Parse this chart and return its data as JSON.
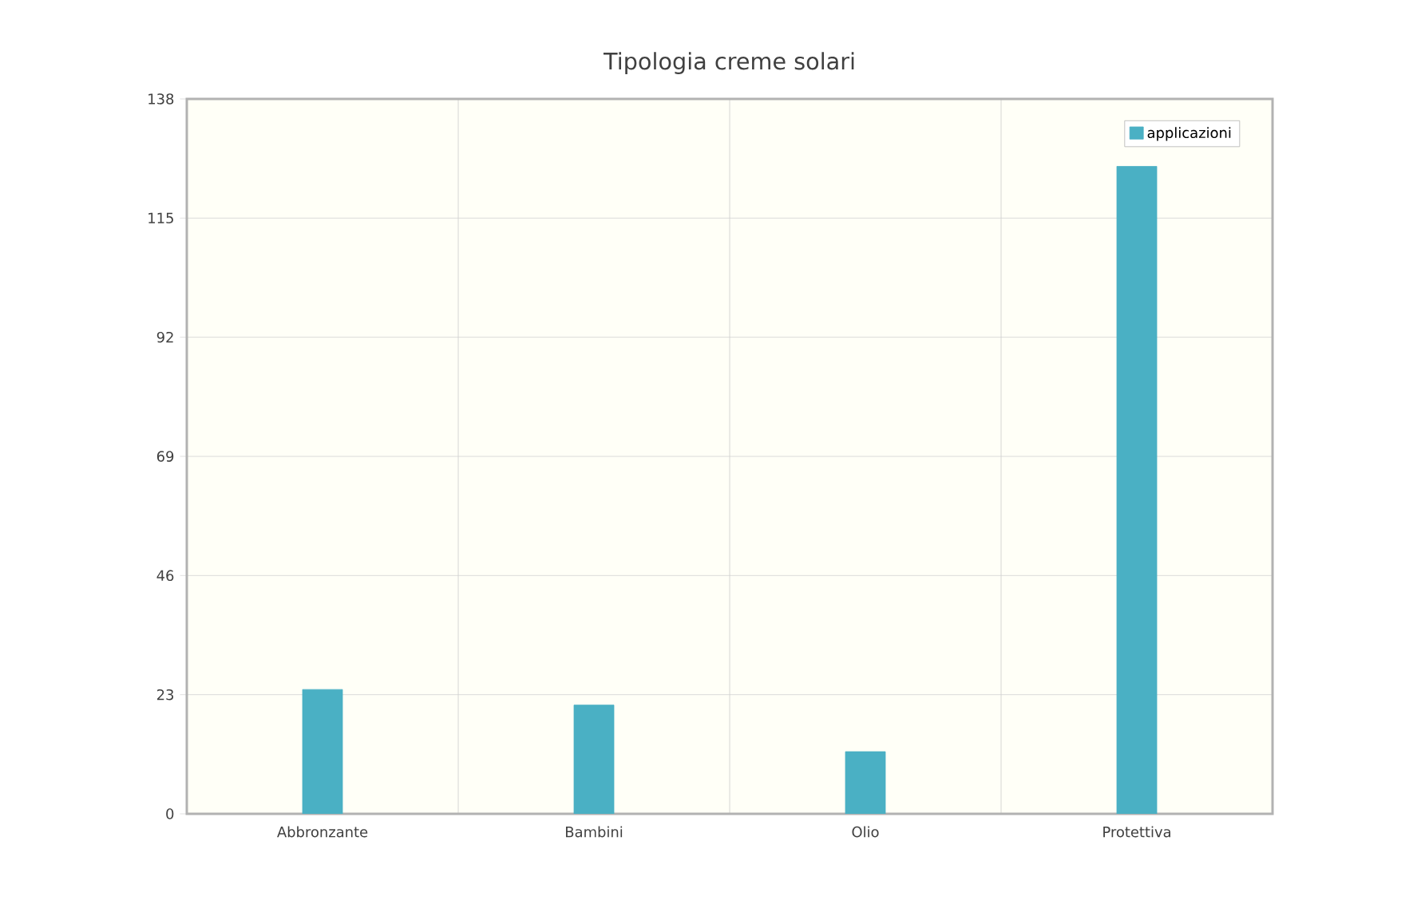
{
  "chart_data": {
    "type": "bar",
    "title": "Tipologia creme solari",
    "categories": [
      "Abbronzante",
      "Bambini",
      "Olio",
      "Protettiva"
    ],
    "series": [
      {
        "name": "applicazioni",
        "color": "#4ab0c4",
        "values": [
          24,
          21,
          12,
          125
        ]
      }
    ],
    "ylim": [
      0,
      138
    ],
    "yticks": [
      0,
      23,
      46,
      69,
      92,
      115,
      138
    ],
    "grid": true,
    "legend": "top right"
  }
}
